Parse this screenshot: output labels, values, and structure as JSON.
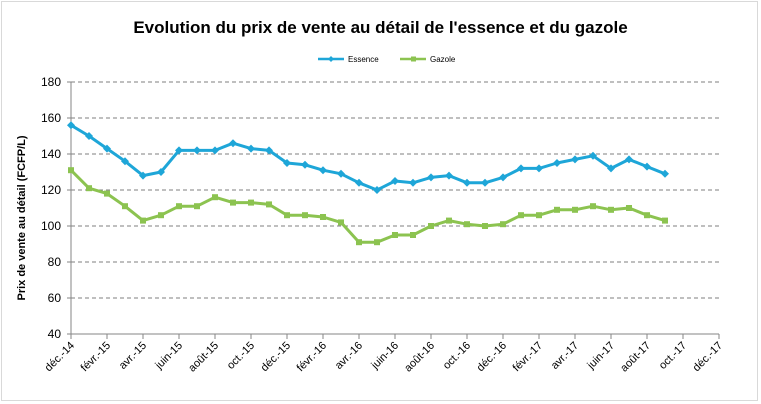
{
  "chart_data": {
    "type": "line",
    "title": "Evolution du prix de vente au détail de l'essence et du gazole",
    "xlabel": "",
    "ylabel": "Prix de vente au détail (FCFP/L)",
    "ylim": [
      40,
      180
    ],
    "yticks": [
      40,
      60,
      80,
      100,
      120,
      140,
      160,
      180
    ],
    "grid": "horizontal dashed",
    "legend": "top",
    "xtick_labels": [
      "déc.-14",
      "févr.-15",
      "avr.-15",
      "juin-15",
      "août-15",
      "oct.-15",
      "déc.-15",
      "févr.-16",
      "avr.-16",
      "juin-16",
      "août-16",
      "oct.-16",
      "déc.-16",
      "févr.-17",
      "avr.-17",
      "juin-17",
      "août-17",
      "oct.-17",
      "déc.-17"
    ],
    "x": [
      "déc.-14",
      "janv.-15",
      "févr.-15",
      "mars-15",
      "avr.-15",
      "mai-15",
      "juin-15",
      "juil.-15",
      "août-15",
      "sept.-15",
      "oct.-15",
      "nov.-15",
      "déc.-15",
      "janv.-16",
      "févr.-16",
      "mars-16",
      "avr.-16",
      "mai-16",
      "juin-16",
      "juil.-16",
      "août-16",
      "sept.-16",
      "oct.-16",
      "nov.-16",
      "déc.-16",
      "janv.-17",
      "févr.-17",
      "mars-17",
      "avr.-17",
      "mai-17",
      "juin-17",
      "juil.-17",
      "août-17",
      "sept.-17"
    ],
    "series": [
      {
        "name": "Essence",
        "color": "#1ea6d8",
        "values": [
          156,
          150,
          143,
          136,
          128,
          130,
          142,
          142,
          142,
          146,
          143,
          142,
          135,
          134,
          131,
          129,
          124,
          120,
          125,
          124,
          127,
          128,
          124,
          124,
          127,
          132,
          132,
          135,
          137,
          139,
          132,
          137,
          133,
          129
        ]
      },
      {
        "name": "Gazole",
        "color": "#8cc350",
        "values": [
          131,
          121,
          118,
          111,
          103,
          106,
          111,
          111,
          116,
          113,
          113,
          112,
          106,
          106,
          105,
          102,
          91,
          91,
          95,
          95,
          100,
          103,
          101,
          100,
          101,
          106,
          106,
          109,
          109,
          111,
          109,
          110,
          106,
          103
        ]
      }
    ]
  }
}
